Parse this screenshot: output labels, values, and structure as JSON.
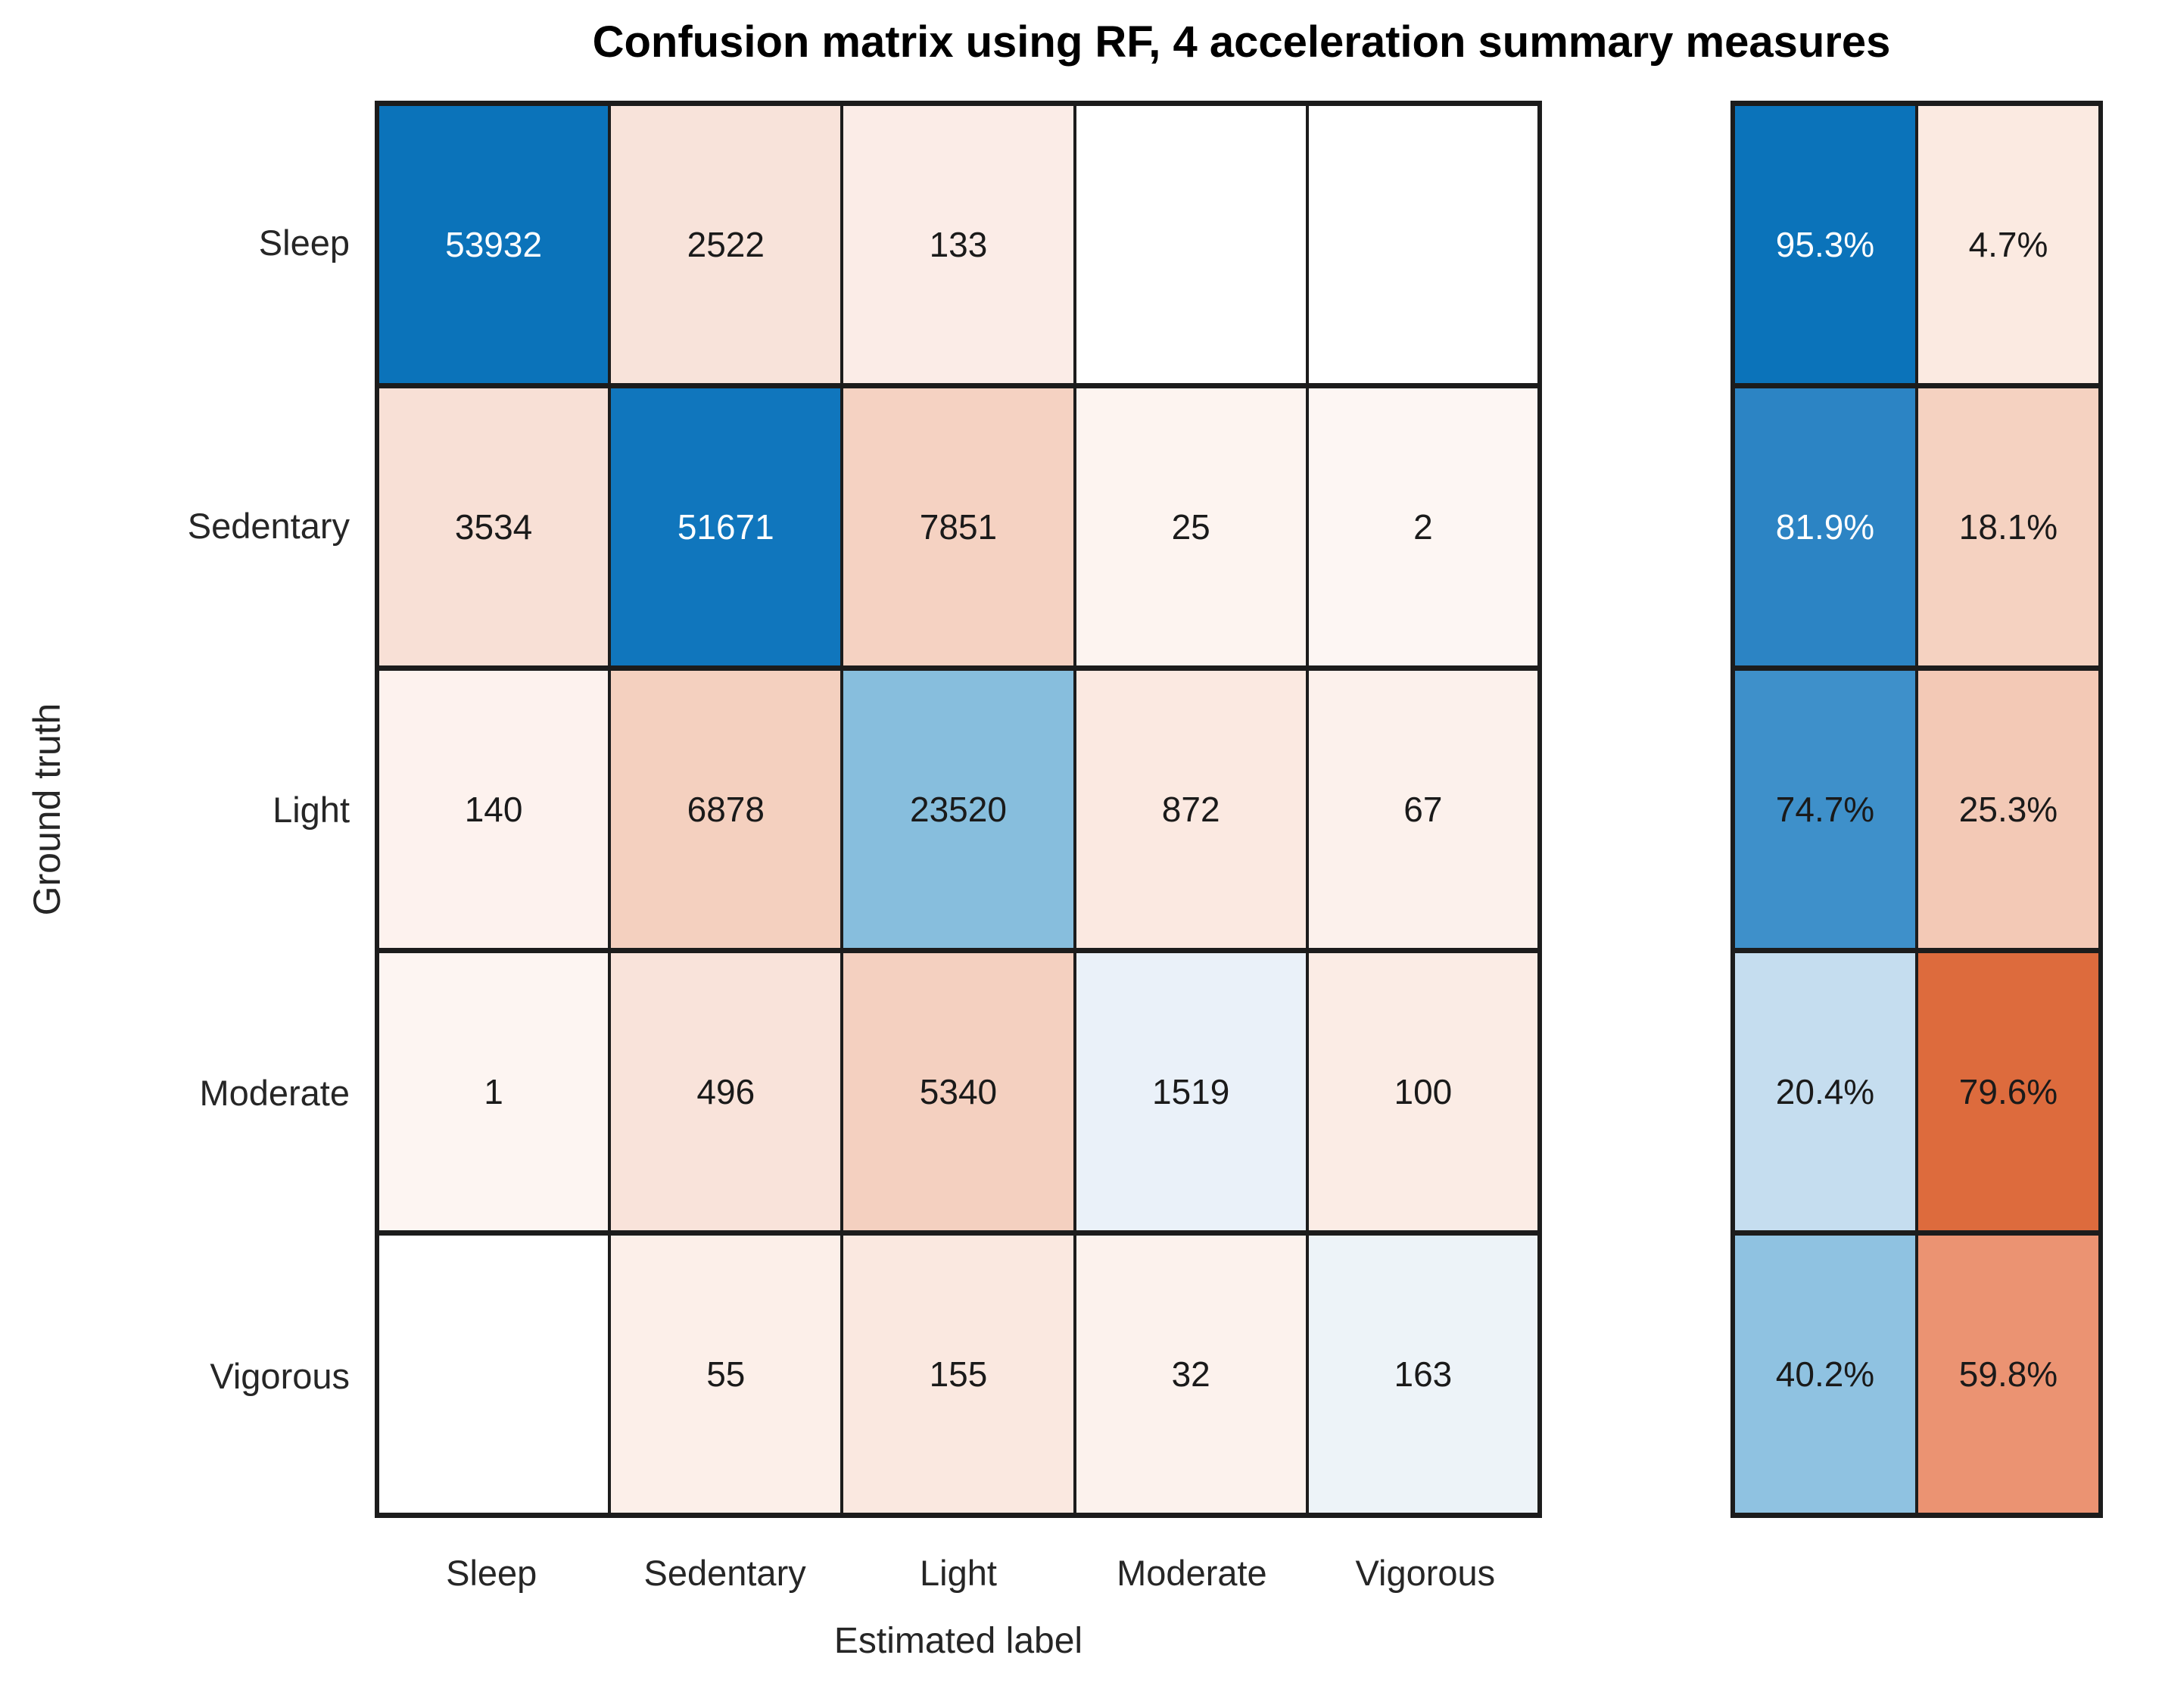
{
  "title": "Confusion matrix using RF, 4 acceleration summary measures",
  "y_axis_label": "Ground truth",
  "x_axis_label": "Estimated label",
  "classes": [
    "Sleep",
    "Sedentary",
    "Light",
    "Moderate",
    "Vigorous"
  ],
  "chart_data": {
    "type": "heatmap",
    "title": "Confusion matrix using RF, 4 acceleration summary measures",
    "xlabel": "Estimated label",
    "ylabel": "Ground truth",
    "categories": [
      "Sleep",
      "Sedentary",
      "Light",
      "Moderate",
      "Vigorous"
    ],
    "matrix": [
      [
        53932,
        2522,
        133,
        null,
        null
      ],
      [
        3534,
        51671,
        7851,
        25,
        2
      ],
      [
        140,
        6878,
        23520,
        872,
        67
      ],
      [
        1,
        496,
        5340,
        1519,
        100
      ],
      [
        null,
        55,
        155,
        32,
        163
      ]
    ],
    "row_summary_correct_pct": [
      95.3,
      81.9,
      74.7,
      20.4,
      40.2
    ],
    "row_summary_incorrect_pct": [
      4.7,
      18.1,
      25.3,
      79.6,
      59.8
    ],
    "legend_position": "none",
    "grid": true
  },
  "display": {
    "matrix_text": [
      [
        "53932",
        "2522",
        "133",
        "",
        ""
      ],
      [
        "3534",
        "51671",
        "7851",
        "25",
        "2"
      ],
      [
        "140",
        "6878",
        "23520",
        "872",
        "67"
      ],
      [
        "1",
        "496",
        "5340",
        "1519",
        "100"
      ],
      [
        "",
        "55",
        "155",
        "32",
        "163"
      ]
    ],
    "matrix_bg": [
      [
        "#0b73ba",
        "#f8e3da",
        "#fbece7",
        "#ffffff",
        "#ffffff"
      ],
      [
        "#f8e0d6",
        "#1076bd",
        "#f5d2c2",
        "#fdf4f0",
        "#fdf6f3"
      ],
      [
        "#fdf2ee",
        "#f4d0bf",
        "#87bedd",
        "#fbe9e1",
        "#fcf1ec"
      ],
      [
        "#fdf5f2",
        "#f9e3da",
        "#f4d0c0",
        "#eaf1f9",
        "#fbece5"
      ],
      [
        "#ffffff",
        "#fcefe9",
        "#fae8e0",
        "#fcf2ed",
        "#edf3f8"
      ]
    ],
    "matrix_fg": [
      [
        "#ffffff",
        "#1a1a1a",
        "#1a1a1a",
        "#1a1a1a",
        "#1a1a1a"
      ],
      [
        "#1a1a1a",
        "#ffffff",
        "#1a1a1a",
        "#1a1a1a",
        "#1a1a1a"
      ],
      [
        "#1a1a1a",
        "#1a1a1a",
        "#1a1a1a",
        "#1a1a1a",
        "#1a1a1a"
      ],
      [
        "#1a1a1a",
        "#1a1a1a",
        "#1a1a1a",
        "#1a1a1a",
        "#1a1a1a"
      ],
      [
        "#1a1a1a",
        "#1a1a1a",
        "#1a1a1a",
        "#1a1a1a",
        "#1a1a1a"
      ]
    ],
    "summary_text": [
      [
        "95.3%",
        "4.7%"
      ],
      [
        "81.9%",
        "18.1%"
      ],
      [
        "74.7%",
        "25.3%"
      ],
      [
        "20.4%",
        "79.6%"
      ],
      [
        "40.2%",
        "59.8%"
      ]
    ],
    "summary_bg": [
      [
        "#0b73ba",
        "#fbeae1"
      ],
      [
        "#2c84c4",
        "#f5d2c1"
      ],
      [
        "#3e90ca",
        "#f3c9b6"
      ],
      [
        "#c5ddef",
        "#dd6b3d"
      ],
      [
        "#8fc2e1",
        "#eb9372"
      ]
    ],
    "summary_fg": [
      [
        "#ffffff",
        "#1a1a1a"
      ],
      [
        "#ffffff",
        "#1a1a1a"
      ],
      [
        "#1a1a1a",
        "#1a1a1a"
      ],
      [
        "#1a1a1a",
        "#1a1a1a"
      ],
      [
        "#1a1a1a",
        "#1a1a1a"
      ]
    ]
  },
  "colors": {
    "accent_blue": "#0b73ba",
    "accent_orange": "#dd6b3d",
    "grid_border": "#1c1c1c"
  }
}
